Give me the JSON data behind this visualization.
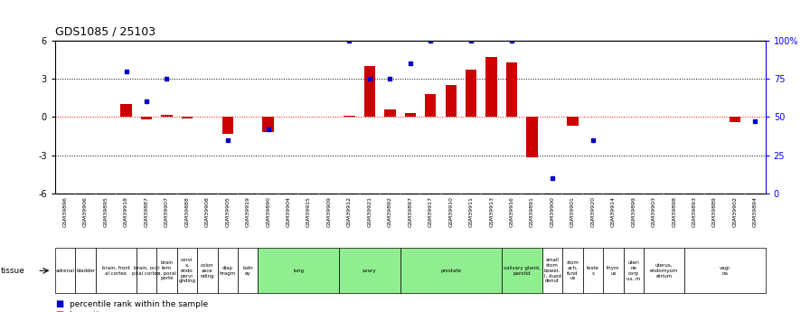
{
  "title": "GDS1085 / 25103",
  "gsm_labels": [
    "GSM39896",
    "GSM39906",
    "GSM39895",
    "GSM39918",
    "GSM39887",
    "GSM39907",
    "GSM39888",
    "GSM39908",
    "GSM39905",
    "GSM39919",
    "GSM39890",
    "GSM39904",
    "GSM39915",
    "GSM39909",
    "GSM39912",
    "GSM39921",
    "GSM39892",
    "GSM39897",
    "GSM39917",
    "GSM39910",
    "GSM39911",
    "GSM39913",
    "GSM39916",
    "GSM39891",
    "GSM39900",
    "GSM39901",
    "GSM39920",
    "GSM39914",
    "GSM39899",
    "GSM39903",
    "GSM39898",
    "GSM39893",
    "GSM39889",
    "GSM39902",
    "GSM39894"
  ],
  "log_ratio": [
    0.0,
    0.0,
    0.0,
    1.0,
    -0.2,
    0.2,
    -0.15,
    0.0,
    -1.3,
    0.0,
    -1.2,
    0.0,
    0.0,
    0.0,
    0.1,
    4.0,
    0.6,
    0.3,
    1.8,
    2.5,
    3.7,
    4.7,
    4.3,
    -3.2,
    0.0,
    -0.7,
    0.0,
    0.0,
    0.0,
    0.0,
    0.0,
    0.0,
    0.0,
    -0.4,
    0.0
  ],
  "pct_rank": [
    null,
    null,
    null,
    80,
    60,
    75,
    null,
    null,
    35,
    null,
    42,
    null,
    null,
    null,
    100,
    75,
    75,
    85,
    100,
    null,
    100,
    null,
    100,
    null,
    10,
    null,
    35,
    null,
    null,
    null,
    null,
    null,
    null,
    null,
    47
  ],
  "tissue_groups": [
    {
      "label": "adrenal",
      "start": 0,
      "end": 1,
      "color": "#ffffff"
    },
    {
      "label": "bladder",
      "start": 1,
      "end": 2,
      "color": "#ffffff"
    },
    {
      "label": "brain, front\nal cortex",
      "start": 2,
      "end": 4,
      "color": "#ffffff"
    },
    {
      "label": "brain, occi\npital cortex",
      "start": 4,
      "end": 5,
      "color": "#ffffff"
    },
    {
      "label": "brain\ntem\nx, poral\nporte",
      "start": 5,
      "end": 6,
      "color": "#ffffff"
    },
    {
      "label": "cervi\nx,\nendo\npervi\ngnding",
      "start": 6,
      "end": 7,
      "color": "#ffffff"
    },
    {
      "label": "colon\nasce\nnding",
      "start": 7,
      "end": 8,
      "color": "#ffffff"
    },
    {
      "label": "diap\nhragm",
      "start": 8,
      "end": 9,
      "color": "#ffffff"
    },
    {
      "label": "kidn\ney",
      "start": 9,
      "end": 10,
      "color": "#ffffff"
    },
    {
      "label": "lung",
      "start": 10,
      "end": 14,
      "color": "#90ee90"
    },
    {
      "label": "ovary",
      "start": 14,
      "end": 17,
      "color": "#90ee90"
    },
    {
      "label": "prostate",
      "start": 17,
      "end": 22,
      "color": "#90ee90"
    },
    {
      "label": "salivary gland,\nparotid",
      "start": 22,
      "end": 24,
      "color": "#90ee90"
    },
    {
      "label": "small\nstom\nbowel,\nl, duod\ndenut",
      "start": 24,
      "end": 25,
      "color": "#ffffff"
    },
    {
      "label": "stom\nach,\nfund\nus",
      "start": 25,
      "end": 26,
      "color": "#ffffff"
    },
    {
      "label": "teste\ns",
      "start": 26,
      "end": 27,
      "color": "#ffffff"
    },
    {
      "label": "thym\nus",
      "start": 27,
      "end": 28,
      "color": "#ffffff"
    },
    {
      "label": "uteri\nne\ncorp\nus, m",
      "start": 28,
      "end": 29,
      "color": "#ffffff"
    },
    {
      "label": "uterus,\nendomyom\netrium",
      "start": 29,
      "end": 31,
      "color": "#ffffff"
    },
    {
      "label": "vagi\nna",
      "start": 31,
      "end": 35,
      "color": "#ffffff"
    }
  ],
  "ylim_left": [
    -6,
    6
  ],
  "yticks_left": [
    -6,
    -3,
    0,
    3,
    6
  ],
  "yticks_right": [
    0,
    25,
    50,
    75,
    100
  ],
  "yticklabels_right": [
    "0",
    "25",
    "50",
    "75",
    "100%"
  ],
  "hlines_black": [
    -3,
    3
  ],
  "hline_red": 0,
  "bar_color": "#cc0000",
  "dot_color": "#0000cc",
  "gsm_bg_color": "#d3d3d3",
  "tissue_border_color": "#000000",
  "fig_bg": "#ffffff"
}
